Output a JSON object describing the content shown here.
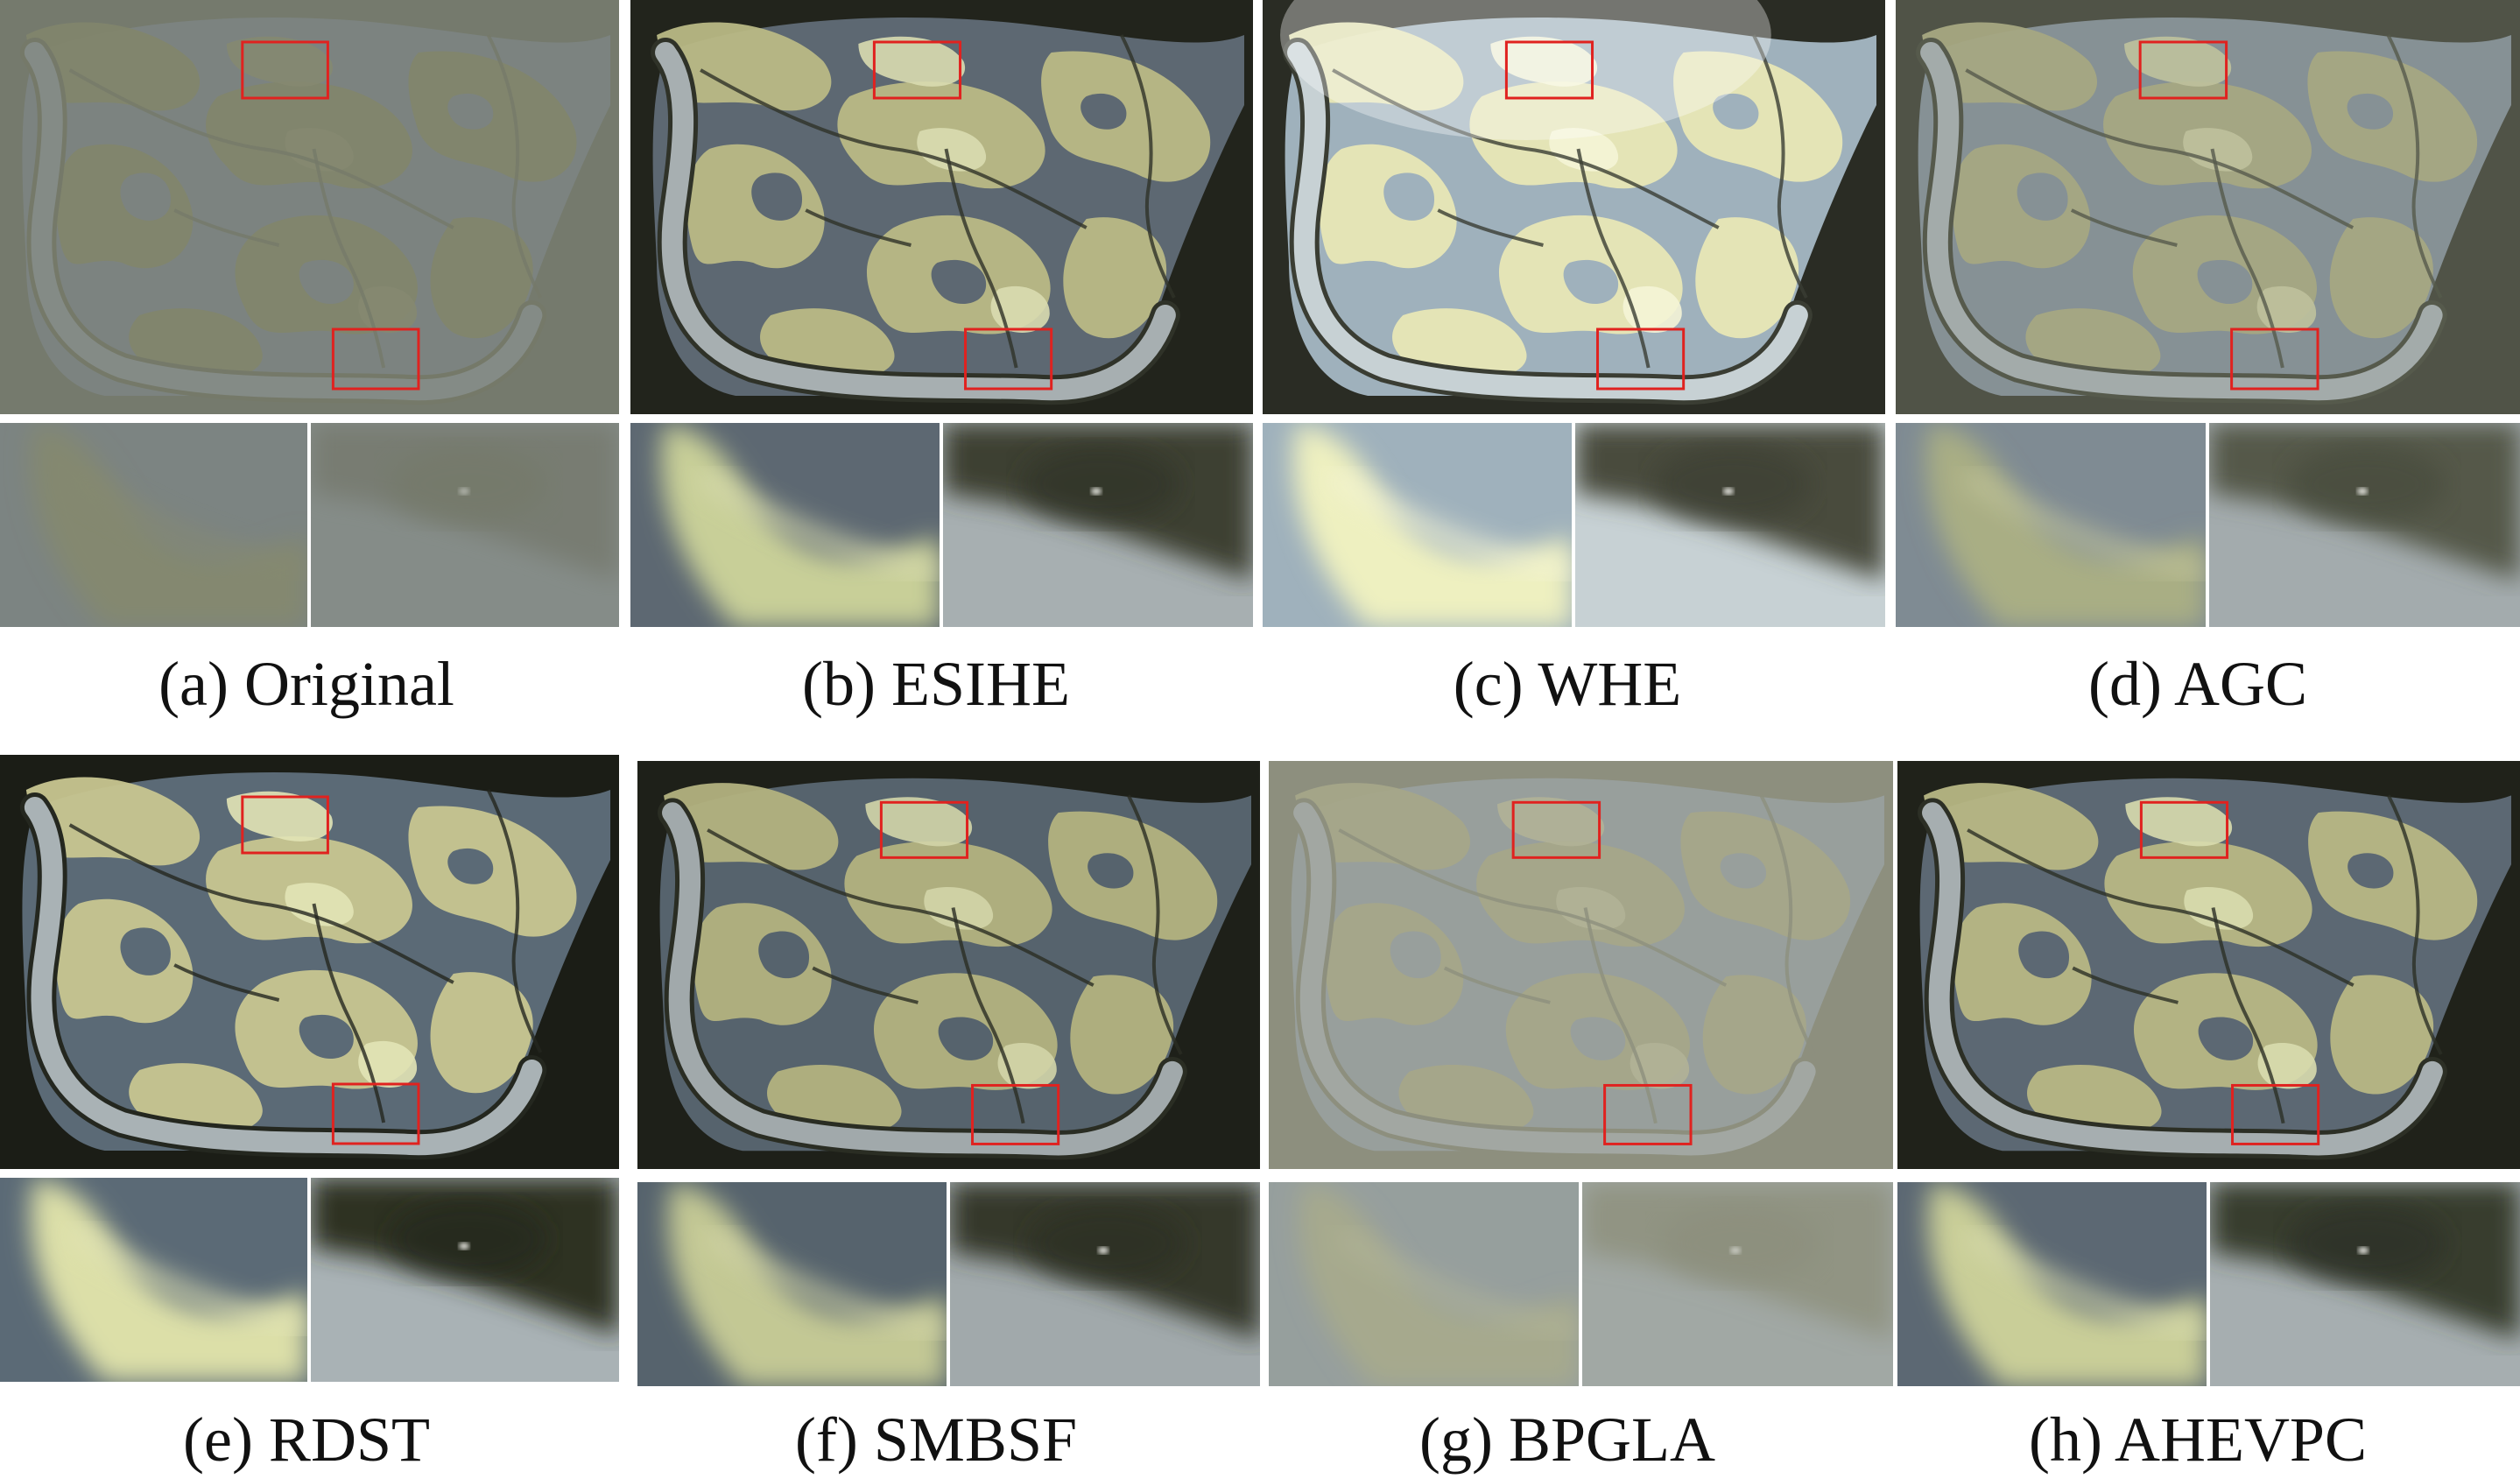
{
  "figure": {
    "panels": [
      {
        "caption": "(a) Original",
        "variant": "original",
        "palette": {
          "water": "#7a848a",
          "land": "#86875e",
          "edge": "#6b6e57",
          "river": "#8d9597",
          "dark": "#6b6f60",
          "bright": "#8f9068",
          "zoomA": "#8a8d66",
          "zoomB": "#72756a"
        }
      },
      {
        "caption": "(b) ESIHE",
        "variant": "enhanced",
        "palette": {
          "water": "#5d6872",
          "land": "#b9b985",
          "edge": "#2f3228",
          "river": "#a7afb1",
          "dark": "#22241c",
          "bright": "#d9dcb0",
          "zoomA": "#c8cf98",
          "zoomB": "#3d4030"
        }
      },
      {
        "caption": "(c) WHE",
        "variant": "bright",
        "palette": {
          "water": "#9fb1bc",
          "land": "#e8e7b5",
          "edge": "#3a3d33",
          "river": "#c7d1d4",
          "dark": "#2a2c24",
          "bright": "#f4f4d6",
          "zoomA": "#eef0c0",
          "zoomB": "#4a4c3c"
        }
      },
      {
        "caption": "(d) AGC",
        "variant": "mild",
        "palette": {
          "water": "#7f8b93",
          "land": "#a6a67b",
          "edge": "#45483a",
          "river": "#a3abad",
          "dark": "#3d4034",
          "bright": "#c4c69c",
          "zoomA": "#a9ae84",
          "zoomB": "#555849"
        }
      },
      {
        "caption": "(e) RDST",
        "variant": "enhanced",
        "palette": {
          "water": "#5b6a76",
          "land": "#c8c690",
          "edge": "#24271f",
          "river": "#a9b2b5",
          "dark": "#1b1d16",
          "bright": "#e2e4b6",
          "zoomA": "#dcdfa8",
          "zoomB": "#2d3024"
        }
      },
      {
        "caption": "(f) SMBSF",
        "variant": "enhanced",
        "palette": {
          "water": "#56636d",
          "land": "#b3b27f",
          "edge": "#2a2d23",
          "river": "#a1a9ab",
          "dark": "#1e2019",
          "bright": "#d3d5a8",
          "zoomA": "#c3c894",
          "zoomB": "#34372a"
        }
      },
      {
        "caption": "(g) BPGLA",
        "variant": "hazy",
        "palette": {
          "water": "#8e999f",
          "land": "#a8a77c",
          "edge": "#7b7d68",
          "river": "#a0a8aa",
          "dark": "#7a7c69",
          "bright": "#bcbd95",
          "zoomA": "#a9ab84",
          "zoomB": "#858773"
        }
      },
      {
        "caption": "(h) AHEVPC",
        "variant": "enhanced",
        "palette": {
          "water": "#5c6873",
          "land": "#b7b784",
          "edge": "#2c2f25",
          "river": "#a6aeb0",
          "dark": "#20221a",
          "bright": "#d8dbae",
          "zoomA": "#c9ce98",
          "zoomB": "#393c2e"
        }
      }
    ],
    "zoom_box_color": "#e0221f"
  }
}
